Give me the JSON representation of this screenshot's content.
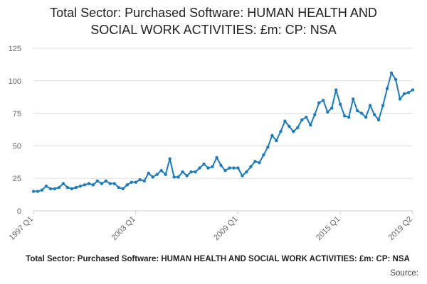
{
  "title_line1": "Total Sector: Purchased Software: HUMAN HEALTH AND",
  "title_line2": "SOCIAL WORK ACTIVITIES: £m: CP: NSA",
  "footer_title": "Total Sector: Purchased Software: HUMAN HEALTH AND SOCIAL WORK ACTIVITIES: £m: CP: NSA",
  "source_label": "Source:",
  "colors": {
    "line": "#1f7ab8",
    "grid": "#dddddd"
  },
  "chart_data": {
    "type": "line",
    "title": "Total Sector: Purchased Software: HUMAN HEALTH AND SOCIAL WORK ACTIVITIES: £m: CP: NSA",
    "xlabel": "",
    "ylabel": "",
    "ylim": [
      0,
      125
    ],
    "yticks": [
      0,
      25,
      50,
      75,
      100,
      125
    ],
    "xtick_labels": [
      "1997 Q1",
      "2003 Q1",
      "2009 Q1",
      "2015 Q1",
      "2019 Q2"
    ],
    "xtick_index": [
      0,
      24,
      48,
      72,
      89
    ],
    "grid": "horizontal",
    "x": [
      "1997 Q1",
      "1997 Q2",
      "1997 Q3",
      "1997 Q4",
      "1998 Q1",
      "1998 Q2",
      "1998 Q3",
      "1998 Q4",
      "1999 Q1",
      "1999 Q2",
      "1999 Q3",
      "1999 Q4",
      "2000 Q1",
      "2000 Q2",
      "2000 Q3",
      "2000 Q4",
      "2001 Q1",
      "2001 Q2",
      "2001 Q3",
      "2001 Q4",
      "2002 Q1",
      "2002 Q2",
      "2002 Q3",
      "2002 Q4",
      "2003 Q1",
      "2003 Q2",
      "2003 Q3",
      "2003 Q4",
      "2004 Q1",
      "2004 Q2",
      "2004 Q3",
      "2004 Q4",
      "2005 Q1",
      "2005 Q2",
      "2005 Q3",
      "2005 Q4",
      "2006 Q1",
      "2006 Q2",
      "2006 Q3",
      "2006 Q4",
      "2007 Q1",
      "2007 Q2",
      "2007 Q3",
      "2007 Q4",
      "2008 Q1",
      "2008 Q2",
      "2008 Q3",
      "2008 Q4",
      "2009 Q1",
      "2009 Q2",
      "2009 Q3",
      "2009 Q4",
      "2010 Q1",
      "2010 Q2",
      "2010 Q3",
      "2010 Q4",
      "2011 Q1",
      "2011 Q2",
      "2011 Q3",
      "2011 Q4",
      "2012 Q1",
      "2012 Q2",
      "2012 Q3",
      "2012 Q4",
      "2013 Q1",
      "2013 Q2",
      "2013 Q3",
      "2013 Q4",
      "2014 Q1",
      "2014 Q2",
      "2014 Q3",
      "2014 Q4",
      "2015 Q1",
      "2015 Q2",
      "2015 Q3",
      "2015 Q4",
      "2016 Q1",
      "2016 Q2",
      "2016 Q3",
      "2016 Q4",
      "2017 Q1",
      "2017 Q2",
      "2017 Q3",
      "2017 Q4",
      "2018 Q1",
      "2018 Q2",
      "2018 Q3",
      "2018 Q4",
      "2019 Q1",
      "2019 Q2"
    ],
    "series": [
      {
        "values": [
          15,
          15,
          16,
          19,
          17,
          17,
          18,
          21,
          18,
          17,
          18,
          19,
          20,
          21,
          20,
          23,
          21,
          23,
          21,
          21,
          18,
          17,
          20,
          22,
          22,
          24,
          23,
          29,
          26,
          28,
          31,
          28,
          40,
          26,
          26,
          30,
          27,
          30,
          30,
          33,
          36,
          33,
          34,
          41,
          35,
          31,
          33,
          33,
          33,
          27,
          30,
          34,
          38,
          37,
          43,
          49,
          58,
          54,
          61,
          69,
          65,
          61,
          64,
          70,
          72,
          66,
          74,
          83,
          85,
          76,
          79,
          93,
          82,
          73,
          72,
          86,
          77,
          75,
          72,
          81,
          74,
          70,
          81,
          94,
          106,
          101,
          86,
          90,
          91,
          93
        ]
      }
    ]
  }
}
